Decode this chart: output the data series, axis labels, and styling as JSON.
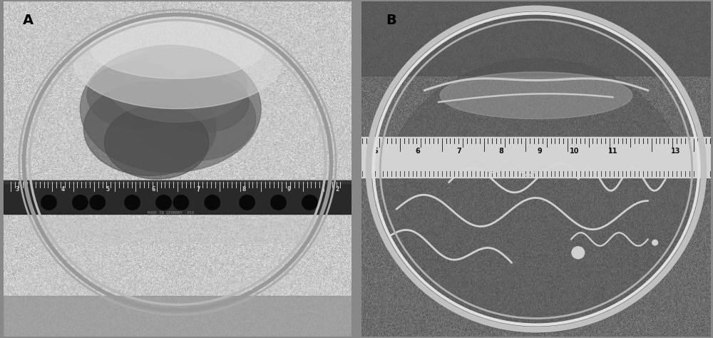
{
  "figsize": [
    10.0,
    4.74
  ],
  "dpi": 100,
  "label_A": "A",
  "label_B": "B",
  "label_fontsize": 14,
  "label_fontweight": "bold",
  "fig_bg": "#888888",
  "panel_A_bg": "#c8c8c8",
  "panel_B_bg_top": "#707070",
  "panel_B_bg_bot": "#4a4a4a",
  "dish_A_edge": "#b0b0b0",
  "dish_B_edge": "#d0d0d0",
  "ruler_A_color": "#1a1a1a",
  "ruler_B_color": "#e0e0e0",
  "embryo_color_B": "#d8d8d8",
  "spot_color_A": "#101010",
  "dark_mass_color": "#5a5a5a",
  "seed": 42
}
